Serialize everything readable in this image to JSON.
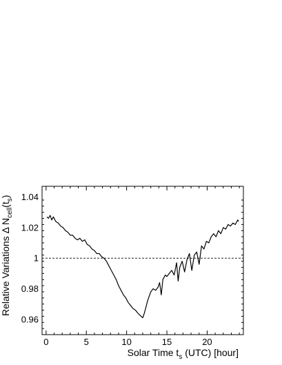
{
  "chart_data": {
    "type": "line",
    "xlabel": "Solar Time t",
    "xlabel_sub": "s",
    "xlabel_suffix": " (UTC) [hour]",
    "ylabel": "Relative Variations Δ N",
    "ylabel_sub1": "cell",
    "ylabel_mid": "(t",
    "ylabel_sub2": "s",
    "ylabel_end": ")",
    "xlim": [
      -0.5,
      24.5
    ],
    "ylim": [
      0.95,
      1.047
    ],
    "x_ticks": [
      0,
      5,
      10,
      15,
      20
    ],
    "x_tick_labels": [
      "0",
      "5",
      "10",
      "15",
      "20"
    ],
    "y_ticks": [
      0.96,
      0.98,
      1,
      1.02,
      1.04
    ],
    "y_tick_labels": [
      "0.96",
      "0.98",
      "1",
      "1.02",
      "1.04"
    ],
    "reference_line": {
      "y": 1,
      "style": "dashed"
    },
    "grid": false,
    "series": [
      {
        "x": [
          0.1,
          0.3,
          0.5,
          0.7,
          0.9,
          1.2,
          1.5,
          1.8,
          2.1,
          2.4,
          2.7,
          3.0,
          3.3,
          3.6,
          3.9,
          4.2,
          4.5,
          4.8,
          5.1,
          5.4,
          5.7,
          6.0,
          6.3,
          6.6,
          6.9,
          7.2,
          7.5,
          7.8,
          8.1,
          8.4,
          8.7,
          9.0,
          9.3,
          9.6,
          9.9,
          10.2,
          10.5,
          10.8,
          11.1,
          11.4,
          11.6,
          11.8,
          12.0,
          12.2,
          12.4,
          12.6,
          12.8,
          13.0,
          13.3,
          13.6,
          13.9,
          14.1,
          14.3,
          14.5,
          14.8,
          15.0,
          15.3,
          15.6,
          15.9,
          16.2,
          16.4,
          16.6,
          16.9,
          17.2,
          17.5,
          17.8,
          18.1,
          18.4,
          18.7,
          19.0,
          19.3,
          19.6,
          19.9,
          20.2,
          20.5,
          20.8,
          21.1,
          21.4,
          21.7,
          22.0,
          22.3,
          22.6,
          22.9,
          23.2,
          23.5,
          23.8,
          23.9
        ],
        "y": [
          1.027,
          1.026,
          1.028,
          1.025,
          1.027,
          1.024,
          1.023,
          1.021,
          1.02,
          1.018,
          1.017,
          1.015,
          1.015,
          1.013,
          1.012,
          1.013,
          1.011,
          1.012,
          1.009,
          1.008,
          1.006,
          1.005,
          1.003,
          1.003,
          1.001,
          1.0,
          0.998,
          0.995,
          0.992,
          0.989,
          0.986,
          0.982,
          0.979,
          0.976,
          0.974,
          0.971,
          0.969,
          0.967,
          0.966,
          0.964,
          0.963,
          0.962,
          0.961,
          0.964,
          0.968,
          0.972,
          0.975,
          0.978,
          0.98,
          0.979,
          0.981,
          0.984,
          0.976,
          0.986,
          0.989,
          0.988,
          0.99,
          0.992,
          0.989,
          0.997,
          0.985,
          0.994,
          0.998,
          0.991,
          0.999,
          1.003,
          0.992,
          1.002,
          1.004,
          0.996,
          1.008,
          1.006,
          1.011,
          1.01,
          1.014,
          1.016,
          1.014,
          1.018,
          1.016,
          1.02,
          1.019,
          1.022,
          1.021,
          1.023,
          1.022,
          1.025,
          1.024
        ]
      }
    ]
  },
  "colors": {
    "line": "#000000",
    "axis": "#000000",
    "background": "#ffffff"
  }
}
